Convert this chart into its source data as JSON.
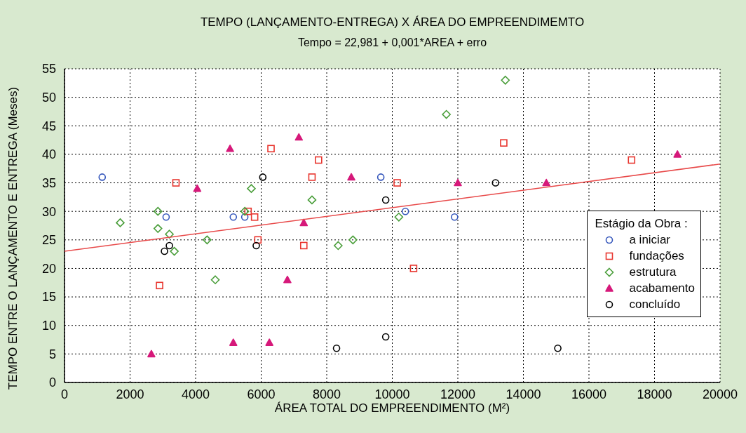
{
  "chart_data": {
    "type": "scatter",
    "title": "TEMPO (LANÇAMENTO-ENTREGA) X ÁREA DO EMPREENDIMEMTO",
    "subtitle": "Tempo = 22,981 + 0,001*AREA + erro",
    "xlabel": "ÁREA TOTAL DO EMPREENDIMENTO (M²)",
    "ylabel": "TEMPO ENTRE O LANÇAMENTO E ENTREGA (Meses)",
    "legend_title": "Estágio da Obra :",
    "xlim": [
      0,
      20000
    ],
    "xticks": [
      0,
      2000,
      4000,
      6000,
      8000,
      10000,
      12000,
      14000,
      16000,
      18000,
      20000
    ],
    "ylim": [
      0,
      55
    ],
    "yticks": [
      0,
      5,
      10,
      15,
      20,
      25,
      30,
      35,
      40,
      45,
      50,
      55
    ],
    "grid": true,
    "legend": "right",
    "series": [
      {
        "name": "a iniciar",
        "color": "#3355bb",
        "marker": "circle",
        "x": [
          1150,
          3100,
          5150,
          5500,
          9650,
          10400,
          11900
        ],
        "values": [
          36,
          29,
          29,
          29,
          36,
          30,
          29
        ]
      },
      {
        "name": "fundações",
        "color": "#e8352e",
        "marker": "square",
        "x": [
          2900,
          3400,
          5600,
          5800,
          5900,
          6300,
          7300,
          7550,
          7750,
          10150,
          10650,
          13400,
          17300
        ],
        "values": [
          17,
          35,
          30,
          29,
          25,
          41,
          24,
          36,
          39,
          35,
          20,
          42,
          39
        ]
      },
      {
        "name": "estrutura",
        "color": "#4a9e3a",
        "marker": "diamond",
        "x": [
          1700,
          2850,
          2850,
          3200,
          3350,
          4350,
          4600,
          5500,
          5700,
          7550,
          8350,
          8800,
          10200,
          11650,
          13450
        ],
        "values": [
          28,
          30,
          27,
          26,
          23,
          25,
          18,
          30,
          34,
          32,
          24,
          25,
          29,
          47,
          53
        ]
      },
      {
        "name": "acabamento",
        "color": "#d6197a",
        "marker": "triangle",
        "x": [
          2650,
          4050,
          5050,
          5150,
          6250,
          6800,
          7150,
          7300,
          8750,
          12000,
          14700,
          18700
        ],
        "values": [
          5,
          34,
          41,
          7,
          7,
          18,
          43,
          28,
          36,
          35,
          35,
          40
        ]
      },
      {
        "name": "concluído",
        "color": "#000000",
        "marker": "circle",
        "x": [
          3050,
          3200,
          5850,
          6050,
          8300,
          9800,
          9800,
          13150,
          15050
        ],
        "values": [
          23,
          24,
          24,
          36,
          6,
          8,
          32,
          35,
          6
        ]
      },
      {
        "type": "line",
        "color": "#e84a4a",
        "marker": "none",
        "line_style": "solid",
        "x": [
          0,
          20000
        ],
        "values": [
          23,
          38.3
        ]
      }
    ]
  }
}
